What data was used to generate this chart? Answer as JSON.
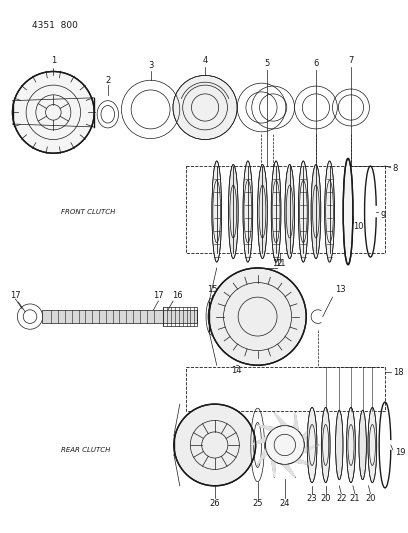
{
  "title": "4351  800",
  "front_clutch_label": "FRONT CLUTCH",
  "rear_clutch_label": "REAR CLUTCH",
  "bg_color": "#ffffff",
  "line_color": "#1a1a1a",
  "fig_w": 4.08,
  "fig_h": 5.33,
  "dpi": 100,
  "title_fontsize": 6.5,
  "label_fontsize": 5.0,
  "num_fontsize": 6.0
}
